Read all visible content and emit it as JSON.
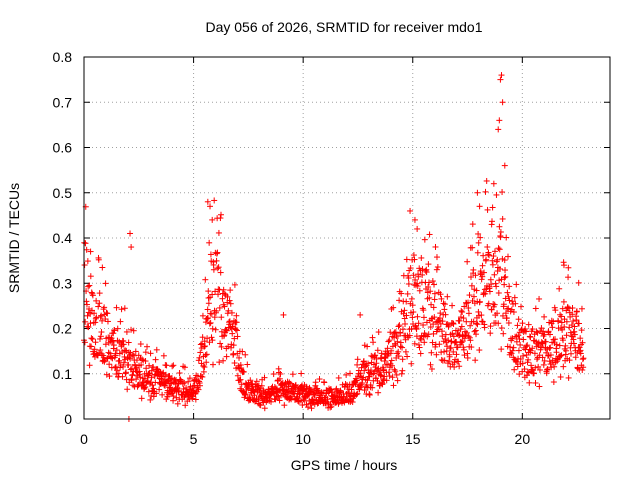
{
  "chart_data": {
    "type": "scatter",
    "title": "Day 056 of 2026, SRMTID for receiver mdo1",
    "xlabel": "GPS time / hours",
    "ylabel": "SRMTID / TECUs",
    "xlim": [
      0,
      24
    ],
    "ylim": [
      0,
      0.8
    ],
    "xticks": [
      0,
      5,
      10,
      15,
      20
    ],
    "yticks": [
      0,
      0.1,
      0.2,
      0.3,
      0.4,
      0.5,
      0.6,
      0.7,
      0.8
    ],
    "grid": true,
    "marker": "plus",
    "color": "#ff0000",
    "series": [
      {
        "name": "SRMTID",
        "anchors": [
          [
            0.0,
            0.32
          ],
          [
            0.3,
            0.22
          ],
          [
            0.6,
            0.2
          ],
          [
            1.0,
            0.18
          ],
          [
            1.5,
            0.14
          ],
          [
            2.0,
            0.13
          ],
          [
            2.3,
            0.11
          ],
          [
            3.0,
            0.09
          ],
          [
            4.0,
            0.07
          ],
          [
            5.0,
            0.06
          ],
          [
            5.4,
            0.13
          ],
          [
            5.8,
            0.26
          ],
          [
            6.1,
            0.28
          ],
          [
            6.4,
            0.22
          ],
          [
            6.8,
            0.19
          ],
          [
            7.2,
            0.09
          ],
          [
            7.6,
            0.06
          ],
          [
            8.5,
            0.05
          ],
          [
            9.0,
            0.07
          ],
          [
            9.5,
            0.06
          ],
          [
            10.5,
            0.05
          ],
          [
            11.5,
            0.05
          ],
          [
            12.3,
            0.06
          ],
          [
            12.8,
            0.1
          ],
          [
            13.5,
            0.11
          ],
          [
            14.3,
            0.15
          ],
          [
            15.0,
            0.28
          ],
          [
            15.5,
            0.26
          ],
          [
            16.0,
            0.22
          ],
          [
            16.5,
            0.19
          ],
          [
            17.0,
            0.16
          ],
          [
            17.5,
            0.2
          ],
          [
            18.0,
            0.3
          ],
          [
            18.5,
            0.28
          ],
          [
            19.0,
            0.32
          ],
          [
            19.5,
            0.2
          ],
          [
            20.0,
            0.16
          ],
          [
            21.0,
            0.15
          ],
          [
            22.0,
            0.2
          ],
          [
            22.8,
            0.15
          ]
        ],
        "spikes": [
          [
            2.1,
            0.41
          ],
          [
            2.15,
            0.38
          ],
          [
            2.05,
            0.0
          ],
          [
            5.65,
            0.48
          ],
          [
            5.75,
            0.47
          ],
          [
            5.85,
            0.44
          ],
          [
            9.1,
            0.23
          ],
          [
            0.3,
            0.37
          ],
          [
            15.1,
            0.44
          ],
          [
            15.2,
            0.42
          ],
          [
            17.95,
            0.5
          ],
          [
            18.05,
            0.47
          ],
          [
            18.7,
            0.52
          ],
          [
            18.9,
            0.64
          ],
          [
            18.95,
            0.66
          ],
          [
            19.0,
            0.75
          ],
          [
            19.05,
            0.76
          ],
          [
            19.1,
            0.7
          ],
          [
            19.2,
            0.56
          ],
          [
            18.6,
            0.43
          ],
          [
            21.9,
            0.34
          ],
          [
            12.6,
            0.23
          ],
          [
            16.1,
            0.33
          ]
        ]
      }
    ]
  }
}
